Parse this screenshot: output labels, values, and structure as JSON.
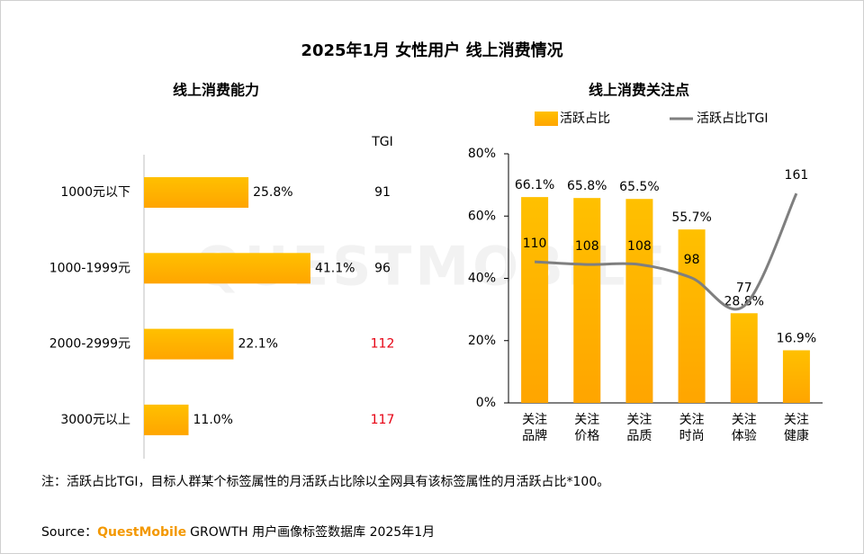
{
  "title": "2025年1月 女性用户 线上消费情况",
  "watermark": "QUESTMOBILE",
  "chart_data": [
    {
      "type": "bar",
      "orientation": "horizontal",
      "title": "线上消费能力",
      "categories": [
        "1000元以下",
        "1000-1999元",
        "2000-2999元",
        "3000元以上"
      ],
      "values": [
        25.8,
        41.1,
        22.1,
        11.0
      ],
      "value_labels": [
        "25.8%",
        "41.1%",
        "22.1%",
        "11.0%"
      ],
      "color": "#ffc000",
      "tgi": {
        "label": "TGI",
        "values": [
          91,
          96,
          112,
          117
        ],
        "colors": [
          "#000000",
          "#000000",
          "#e60012",
          "#e60012"
        ]
      }
    },
    {
      "type": "bar",
      "title": "线上消费关注点",
      "categories": [
        "关注\n品牌",
        "关注\n价格",
        "关注\n品质",
        "关注\n时尚",
        "关注\n体验",
        "关注\n健康"
      ],
      "series": [
        {
          "name": "活跃占比",
          "type": "bar",
          "color": "#ffc000",
          "values": [
            66.1,
            65.8,
            65.5,
            55.7,
            28.8,
            16.9
          ],
          "value_labels": [
            "66.1%",
            "65.8%",
            "65.5%",
            "55.7%",
            "28.8%",
            "16.9%"
          ]
        },
        {
          "name": "活跃占比TGI",
          "type": "line",
          "axis": "y2",
          "color": "#7f7f7f",
          "values": [
            110,
            108,
            108,
            98,
            77,
            161
          ]
        }
      ],
      "ylim": [
        0,
        80
      ],
      "yticks": [
        {
          "value": 0,
          "label": "0%"
        },
        {
          "value": 20,
          "label": "20%"
        },
        {
          "value": 40,
          "label": "40%"
        },
        {
          "value": 60,
          "label": "60%"
        },
        {
          "value": 80,
          "label": "80%"
        }
      ],
      "legend": "top"
    }
  ],
  "note": "注：活跃占比TGI，目标人群某个标签属性的月活跃占比除以全网具有该标签属性的月活跃占比*100。",
  "source": {
    "label": "Source：",
    "brand": "QuestMobile",
    "text": "GROWTH 用户画像标签数据库 2025年1月"
  }
}
